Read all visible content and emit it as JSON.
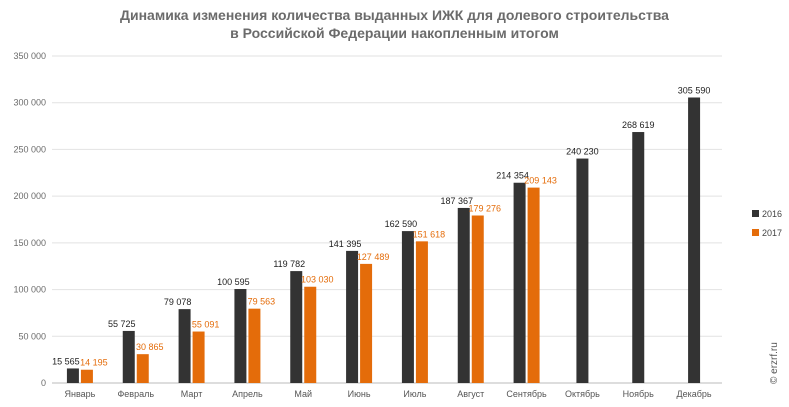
{
  "chart_data": {
    "type": "bar",
    "title_line1": "Динамика изменения количества выданных ИЖК для долевого строительства",
    "title_line2": "в Российской Федерации накопленным итогом",
    "categories": [
      "Январь",
      "Февраль",
      "Март",
      "Апрель",
      "Май",
      "Июнь",
      "Июль",
      "Август",
      "Сентябрь",
      "Октябрь",
      "Ноябрь",
      "Декабрь"
    ],
    "series": [
      {
        "name": "2016",
        "color": "#333333",
        "values": [
          15565,
          55725,
          79078,
          100595,
          119782,
          141395,
          162590,
          187367,
          214354,
          240230,
          268619,
          305590
        ],
        "labels": [
          "15 565",
          "55 725",
          "79 078",
          "100 595",
          "119 782",
          "141 395",
          "162 590",
          "187 367",
          "214 354",
          "240 230",
          "268 619",
          "305 590"
        ]
      },
      {
        "name": "2017",
        "color": "#e46c0a",
        "values": [
          14195,
          30865,
          55091,
          79563,
          103030,
          127489,
          151618,
          179276,
          209143,
          null,
          null,
          null
        ],
        "labels": [
          "14 195",
          "30 865",
          "55 091",
          "79 563",
          "103 030",
          "127 489",
          "151 618",
          "179 276",
          "209 143",
          "",
          "",
          ""
        ]
      }
    ],
    "ylim": [
      0,
      350000
    ],
    "yticks": [
      0,
      50000,
      100000,
      150000,
      200000,
      250000,
      300000,
      350000
    ],
    "ytick_labels": [
      "0",
      "50 000",
      "100 000",
      "150 000",
      "200 000",
      "250 000",
      "300 000",
      "350 000"
    ],
    "grid": true,
    "legend_position": "right",
    "source_label": "© erzrf.ru"
  }
}
